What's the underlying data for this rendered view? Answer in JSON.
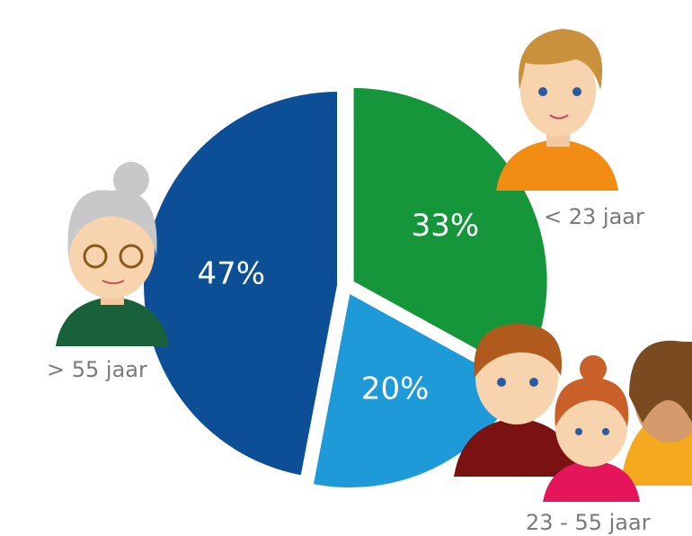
{
  "chart_data": {
    "type": "pie",
    "categories": [
      "< 23 jaar",
      "23 - 55 jaar",
      "> 55 jaar"
    ],
    "values": [
      33,
      20,
      47
    ],
    "value_labels": [
      "33%",
      "20%",
      "47%"
    ],
    "colors": [
      "#16963a",
      "#1e9ad8",
      "#0c4f97"
    ]
  }
}
